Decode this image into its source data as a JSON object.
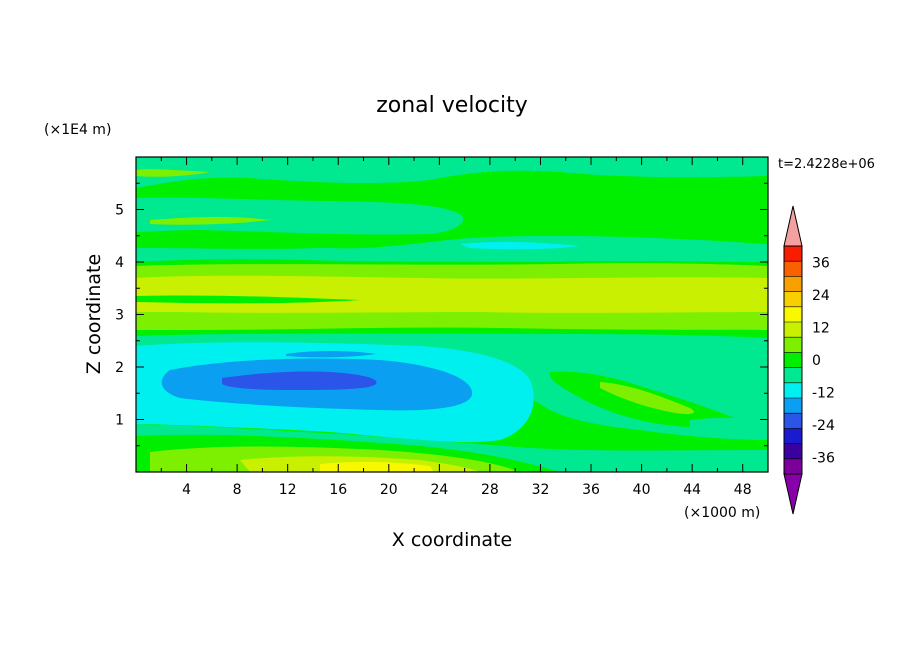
{
  "chart_data": {
    "type": "heatmap",
    "title": "zonal velocity",
    "xlabel": "X coordinate",
    "ylabel": "Z coordinate",
    "x_units": "(×1000 m)",
    "y_units": "(×1E4 m)",
    "time_label": "t=2.4228e+06",
    "xlim": [
      0,
      50
    ],
    "ylim": [
      0,
      6
    ],
    "x_ticks": [
      "4",
      "8",
      "12",
      "16",
      "20",
      "24",
      "28",
      "32",
      "36",
      "40",
      "44",
      "48"
    ],
    "y_ticks": [
      "1",
      "2",
      "3",
      "4",
      "5"
    ],
    "colorbar": {
      "labels": [
        "36",
        "24",
        "12",
        "0",
        "-12",
        "-24",
        "-36"
      ],
      "levels": [
        -42,
        -36,
        -30,
        -24,
        -18,
        -12,
        -6,
        0,
        6,
        12,
        18,
        24,
        30,
        36,
        42
      ],
      "colors": [
        "#7a0099",
        "#3a00a0",
        "#1a1ad0",
        "#2a55e8",
        "#0a9ff0",
        "#00f0f0",
        "#00e890",
        "#00ee00",
        "#7cf000",
        "#c8f000",
        "#f8f800",
        "#f8d000",
        "#f8a000",
        "#f86000",
        "#f81c00"
      ],
      "over_color": "#f4a0a0",
      "under_color": "#8800aa"
    }
  }
}
